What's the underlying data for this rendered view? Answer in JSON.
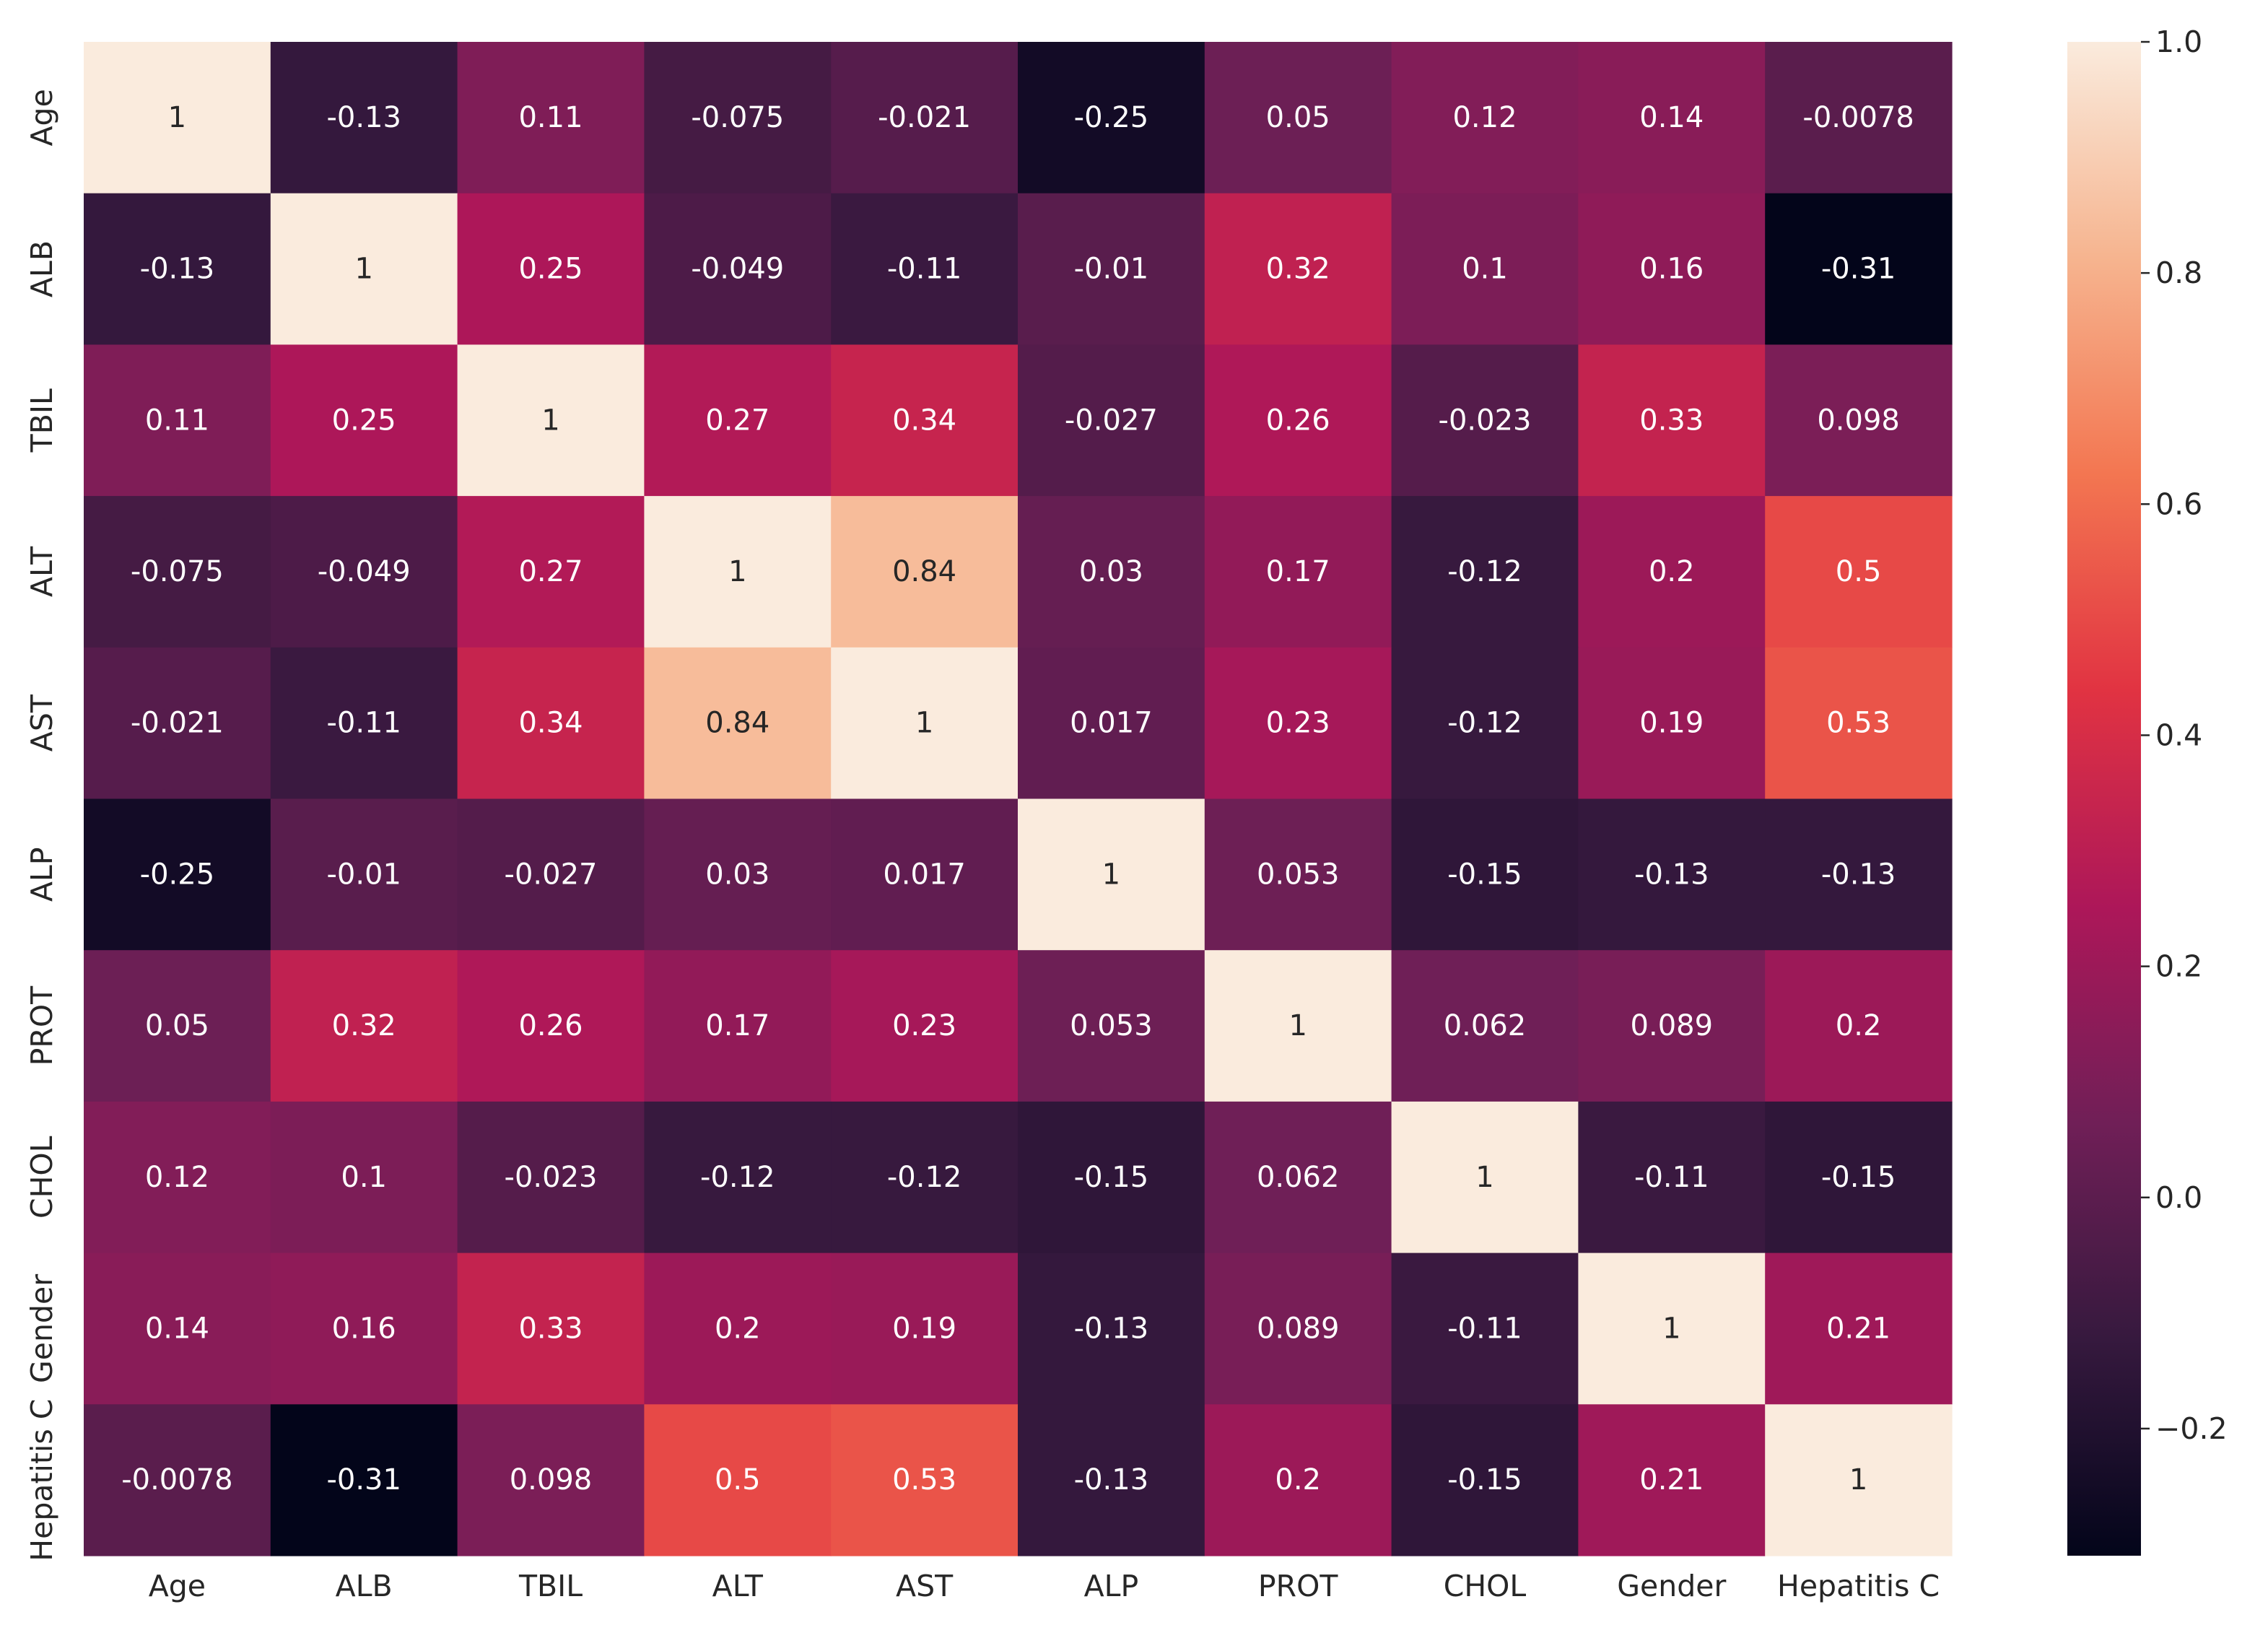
{
  "chart_data": {
    "type": "heatmap",
    "title": "",
    "xlabel": "",
    "ylabel": "",
    "categories": [
      "Age",
      "ALB",
      "TBIL",
      "ALT",
      "AST",
      "ALP",
      "PROT",
      "CHOL",
      "Gender",
      "Hepatitis C"
    ],
    "values": [
      [
        1,
        -0.13,
        0.11,
        -0.075,
        -0.021,
        -0.25,
        0.05,
        0.12,
        0.14,
        -0.0078
      ],
      [
        -0.13,
        1,
        0.25,
        -0.049,
        -0.11,
        -0.01,
        0.32,
        0.1,
        0.16,
        -0.31
      ],
      [
        0.11,
        0.25,
        1,
        0.27,
        0.34,
        -0.027,
        0.26,
        -0.023,
        0.33,
        0.098
      ],
      [
        -0.075,
        -0.049,
        0.27,
        1,
        0.84,
        0.03,
        0.17,
        -0.12,
        0.2,
        0.5
      ],
      [
        -0.021,
        -0.11,
        0.34,
        0.84,
        1,
        0.017,
        0.23,
        -0.12,
        0.19,
        0.53
      ],
      [
        -0.25,
        -0.01,
        -0.027,
        0.03,
        0.017,
        1,
        0.053,
        -0.15,
        -0.13,
        -0.13
      ],
      [
        0.05,
        0.32,
        0.26,
        0.17,
        0.23,
        0.053,
        1,
        0.062,
        0.089,
        0.2
      ],
      [
        0.12,
        0.1,
        -0.023,
        -0.12,
        -0.12,
        -0.15,
        0.062,
        1,
        -0.11,
        -0.15
      ],
      [
        0.14,
        0.16,
        0.33,
        0.2,
        0.19,
        -0.13,
        0.089,
        -0.11,
        1,
        0.21
      ],
      [
        -0.0078,
        -0.31,
        0.098,
        0.5,
        0.53,
        -0.13,
        0.2,
        -0.15,
        0.21,
        1
      ]
    ],
    "cell_labels": [
      [
        "1",
        "-0.13",
        "0.11",
        "-0.075",
        "-0.021",
        "-0.25",
        "0.05",
        "0.12",
        "0.14",
        "-0.0078"
      ],
      [
        "-0.13",
        "1",
        "0.25",
        "-0.049",
        "-0.11",
        "-0.01",
        "0.32",
        "0.1",
        "0.16",
        "-0.31"
      ],
      [
        "0.11",
        "0.25",
        "1",
        "0.27",
        "0.34",
        "-0.027",
        "0.26",
        "-0.023",
        "0.33",
        "0.098"
      ],
      [
        "-0.075",
        "-0.049",
        "0.27",
        "1",
        "0.84",
        "0.03",
        "0.17",
        "-0.12",
        "0.2",
        "0.5"
      ],
      [
        "-0.021",
        "-0.11",
        "0.34",
        "0.84",
        "1",
        "0.017",
        "0.23",
        "-0.12",
        "0.19",
        "0.53"
      ],
      [
        "-0.25",
        "-0.01",
        "-0.027",
        "0.03",
        "0.017",
        "1",
        "0.053",
        "-0.15",
        "-0.13",
        "-0.13"
      ],
      [
        "0.05",
        "0.32",
        "0.26",
        "0.17",
        "0.23",
        "0.053",
        "1",
        "0.062",
        "0.089",
        "0.2"
      ],
      [
        "0.12",
        "0.1",
        "-0.023",
        "-0.12",
        "-0.12",
        "-0.15",
        "0.062",
        "1",
        "-0.11",
        "-0.15"
      ],
      [
        "0.14",
        "0.16",
        "0.33",
        "0.2",
        "0.19",
        "-0.13",
        "0.089",
        "-0.11",
        "1",
        "0.21"
      ],
      [
        "-0.0078",
        "-0.31",
        "0.098",
        "0.5",
        "0.53",
        "-0.13",
        "0.2",
        "-0.15",
        "0.21",
        "1"
      ]
    ],
    "colorbar": {
      "vmin": -0.31,
      "vmax": 1.0,
      "ticks": [
        1.0,
        0.8,
        0.6,
        0.4,
        0.2,
        0.0,
        -0.2
      ],
      "tick_labels": [
        "1.0",
        "0.8",
        "0.6",
        "0.4",
        "0.2",
        "0.0",
        "−0.2"
      ],
      "placement": "right",
      "colormap_stops": [
        "#03051a",
        "#36193e",
        "#701f57",
        "#ad1759",
        "#e13342",
        "#f37651",
        "#f6b48f",
        "#faebdd"
      ]
    },
    "grid": false
  }
}
